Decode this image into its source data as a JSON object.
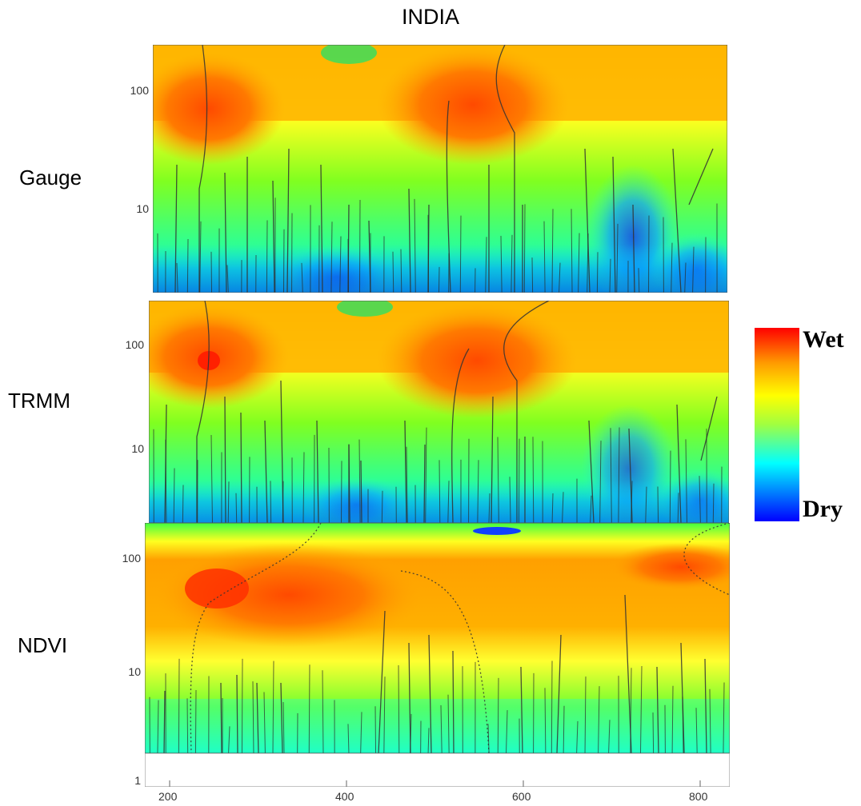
{
  "figure": {
    "title": "INDIA",
    "colorbar": {
      "top_label": "Wet",
      "bottom_label": "Dry",
      "colors": [
        "#0000ff",
        "#00ffff",
        "#a0ff40",
        "#ffff00",
        "#ff9a00",
        "#ff0000"
      ]
    }
  },
  "chart_data": [
    {
      "type": "heatmap",
      "name": "Gauge",
      "yticks": [
        "100",
        "10"
      ],
      "yscale": "log",
      "ylim": [
        2,
        220
      ],
      "xlim": [
        100,
        920
      ]
    },
    {
      "type": "heatmap",
      "name": "TRMM",
      "yticks": [
        "100",
        "10"
      ],
      "yscale": "log",
      "ylim": [
        2,
        220
      ],
      "xlim": [
        100,
        920
      ]
    },
    {
      "type": "heatmap",
      "name": "NDVI",
      "yticks": [
        "100",
        "10",
        "1"
      ],
      "yscale": "log",
      "ylim": [
        1,
        220
      ],
      "xlim": [
        100,
        920
      ],
      "xticks": [
        "200",
        "400",
        "600",
        "800"
      ]
    }
  ]
}
